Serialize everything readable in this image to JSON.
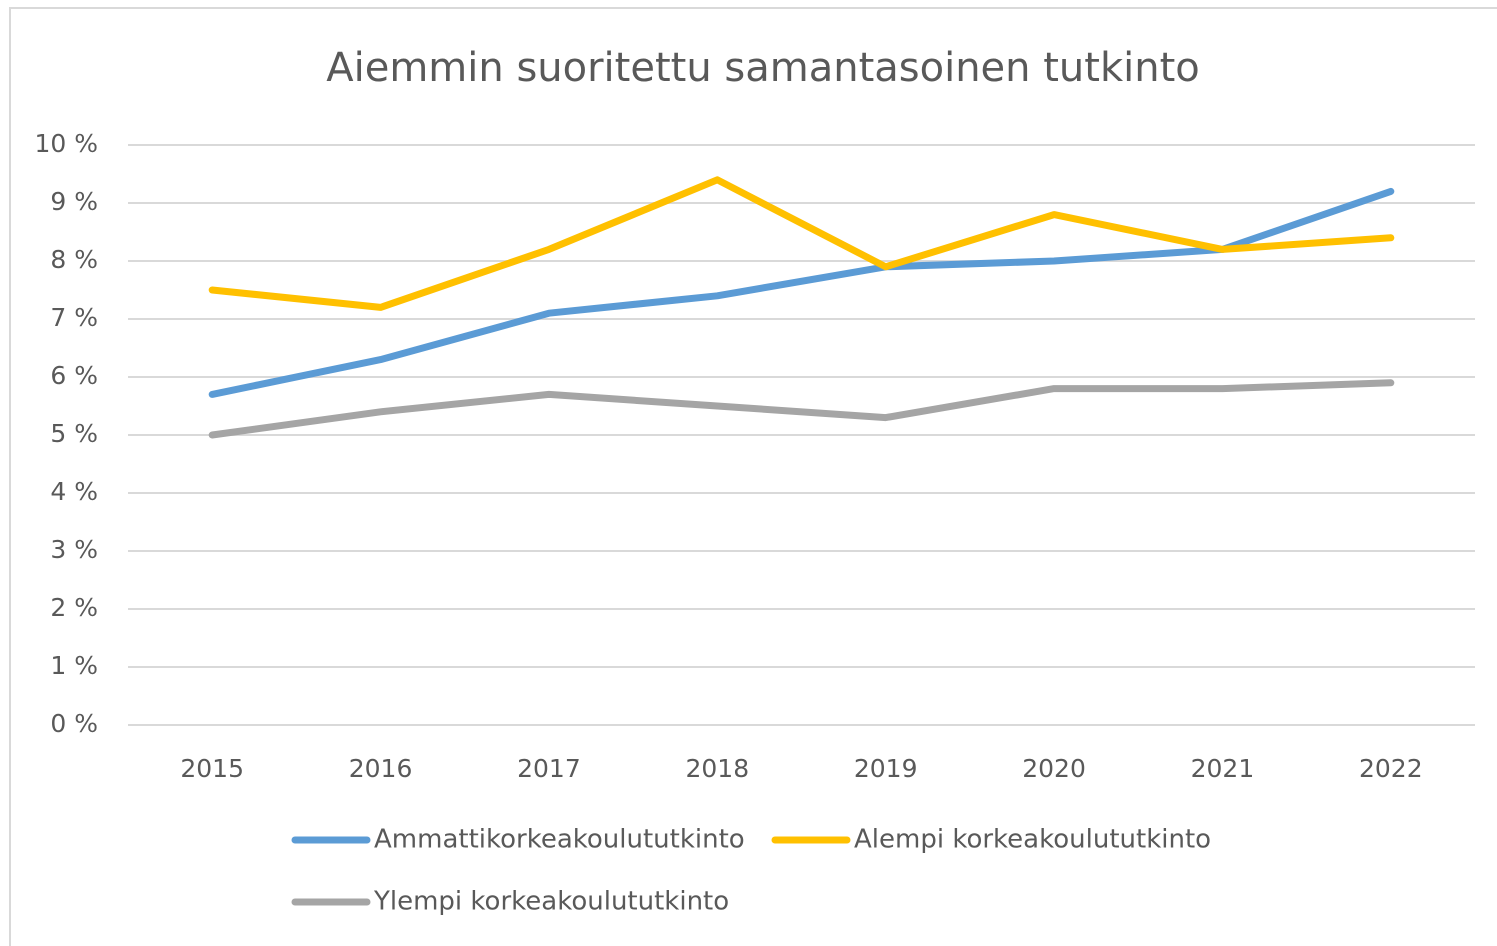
{
  "chart_data": {
    "type": "line",
    "title": "Aiemmin suoritettu samantasoinen tutkinto",
    "categories": [
      "2015",
      "2016",
      "2017",
      "2018",
      "2019",
      "2020",
      "2021",
      "2022"
    ],
    "series": [
      {
        "name": "Ammattikorkeakoulututkinto",
        "color": "#5b9bd5",
        "values": [
          5.7,
          6.3,
          7.1,
          7.4,
          7.9,
          8.0,
          8.2,
          9.2
        ]
      },
      {
        "name": "Alempi korkeakoulututkinto",
        "color": "#ffc000",
        "values": [
          7.5,
          7.2,
          8.2,
          9.4,
          7.9,
          8.8,
          8.2,
          8.4
        ]
      },
      {
        "name": "Ylempi korkeakoulututkinto",
        "color": "#a5a5a5",
        "values": [
          5.0,
          5.4,
          5.7,
          5.5,
          5.3,
          5.8,
          5.8,
          5.9
        ]
      }
    ],
    "ylim": [
      0,
      10
    ],
    "yticks": [
      {
        "value": 0,
        "label": "0 %"
      },
      {
        "value": 1,
        "label": "1 %"
      },
      {
        "value": 2,
        "label": "2 %"
      },
      {
        "value": 3,
        "label": "3 %"
      },
      {
        "value": 4,
        "label": "4 %"
      },
      {
        "value": 5,
        "label": "5 %"
      },
      {
        "value": 6,
        "label": "6 %"
      },
      {
        "value": 7,
        "label": "7 %"
      },
      {
        "value": 8,
        "label": "8 %"
      },
      {
        "value": 9,
        "label": "9 %"
      },
      {
        "value": 10,
        "label": "10 %"
      }
    ],
    "grid": true,
    "legend": "bottom"
  }
}
